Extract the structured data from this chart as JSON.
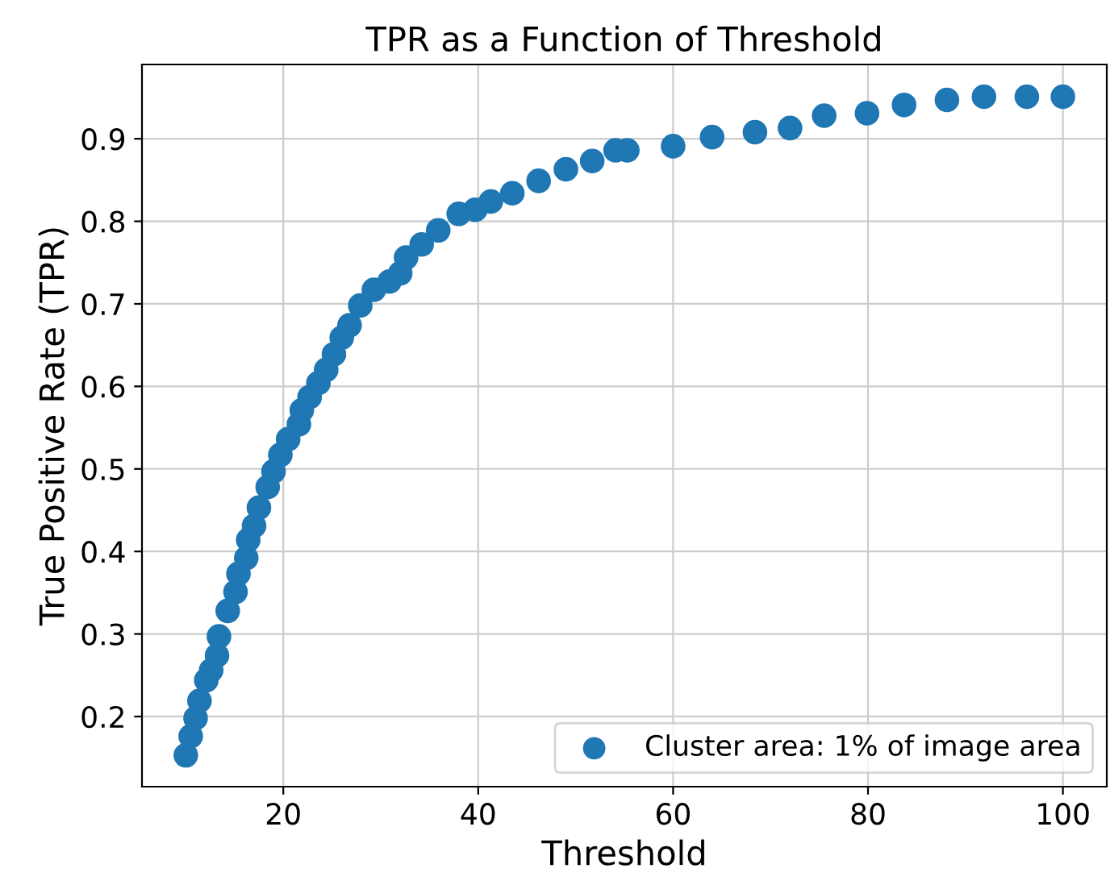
{
  "chart_data": {
    "type": "scatter",
    "title": "TPR as a Function of Threshold",
    "xlabel": "Threshold",
    "ylabel": "True Positive Rate (TPR)",
    "series": [
      {
        "name": "Cluster area: 1% of image area",
        "color": "#1f77b4",
        "x": [
          10.0,
          10.5,
          11,
          11.4,
          12.1,
          12.6,
          13.2,
          13.4,
          14.3,
          15.1,
          15.4,
          16.2,
          16.4,
          17,
          17.5,
          18.4,
          19,
          19.7,
          20.5,
          21.6,
          21.9,
          22.7,
          23.6,
          24.4,
          25.2,
          26,
          26.8,
          27.9,
          29.3,
          30.9,
          32,
          32.6,
          34.2,
          35.9,
          38,
          39.7,
          41.3,
          43.5,
          46.2,
          49,
          51.7,
          54.1,
          55.3,
          60,
          64,
          68.4,
          72,
          75.5,
          79.9,
          83.7,
          88.1,
          91.9,
          96.3,
          100
        ],
        "values": [
          0.153,
          0.176,
          0.198,
          0.219,
          0.244,
          0.256,
          0.274,
          0.297,
          0.328,
          0.351,
          0.373,
          0.392,
          0.414,
          0.431,
          0.453,
          0.478,
          0.497,
          0.517,
          0.536,
          0.554,
          0.571,
          0.587,
          0.604,
          0.62,
          0.639,
          0.659,
          0.674,
          0.698,
          0.717,
          0.727,
          0.737,
          0.756,
          0.772,
          0.789,
          0.809,
          0.814,
          0.824,
          0.834,
          0.849,
          0.863,
          0.873,
          0.886,
          0.886,
          0.891,
          0.902,
          0.908,
          0.913,
          0.928,
          0.931,
          0.941,
          0.947,
          0.951,
          0.951,
          0.951
        ]
      }
    ],
    "xlim": [
      5.5,
      104.5
    ],
    "ylim": [
      0.115,
      0.99
    ],
    "xticks": [
      20,
      40,
      60,
      80,
      100
    ],
    "yticks": [
      0.2,
      0.3,
      0.4,
      0.5,
      0.6,
      0.7,
      0.8,
      0.9
    ],
    "grid": true,
    "legend": "lower right",
    "marker": "circle"
  }
}
